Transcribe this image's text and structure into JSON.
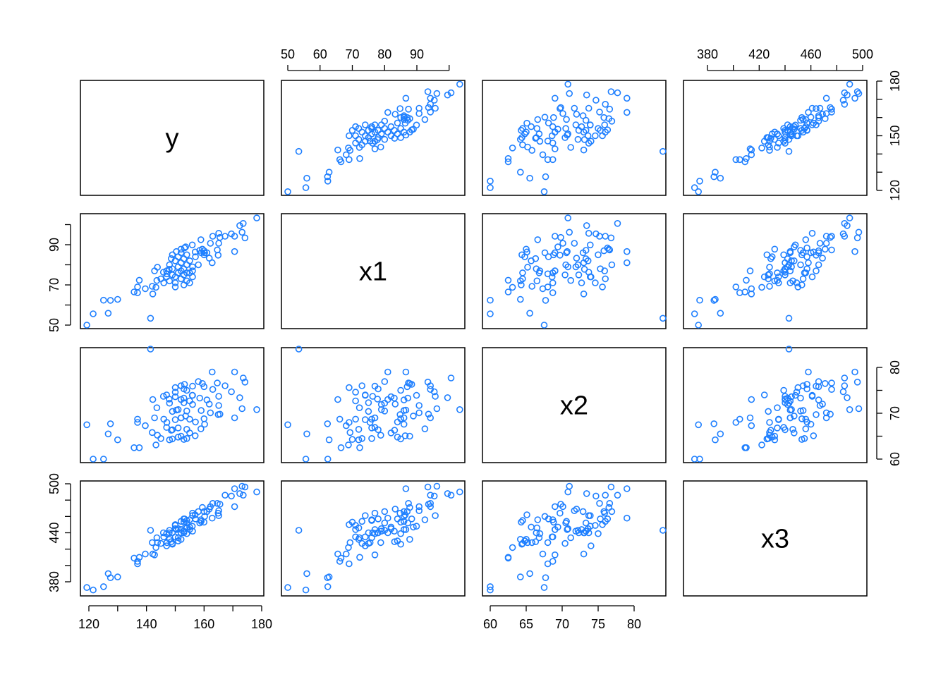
{
  "chart_data": {
    "type": "scatter",
    "subtype": "scatterplot-matrix",
    "variables": [
      "y",
      "x1",
      "x2",
      "x3"
    ],
    "point_color": "#1E7FFF",
    "grid": false,
    "axes": {
      "y": {
        "range": [
          119,
          179
        ],
        "ticks": [
          120,
          130,
          140,
          150,
          160,
          170,
          180
        ],
        "bottom_labels": [
          "120",
          "140",
          "160",
          "180"
        ],
        "right_labels": [
          "120",
          "150",
          "180"
        ]
      },
      "x1": {
        "range": [
          50,
          104
        ],
        "ticks": [
          50,
          60,
          70,
          80,
          90,
          100
        ],
        "top_labels": [
          "50",
          "60",
          "70",
          "80",
          "90"
        ],
        "left_labels": [
          "50",
          "70",
          "90"
        ]
      },
      "x2": {
        "range": [
          59,
          84
        ],
        "ticks": [
          60,
          65,
          70,
          75,
          80
        ],
        "bottom_labels": [
          "60",
          "65",
          "70",
          "75",
          "80"
        ],
        "right_labels": [
          "60",
          "70",
          "80"
        ]
      },
      "x3": {
        "range": [
          372,
          500
        ],
        "ticks": [
          380,
          400,
          420,
          440,
          460,
          480,
          500
        ],
        "top_labels": [
          "380",
          "420",
          "460",
          "500"
        ],
        "left_labels": [
          "380",
          "440",
          "500"
        ]
      }
    },
    "data": {
      "y": [
        119.3,
        121.5,
        126.7,
        125.1,
        127.5,
        130,
        141.4,
        135.7,
        136.9,
        136.9,
        137.5,
        139.6,
        142.2,
        142,
        143.3,
        143.6,
        142.8,
        143.8,
        145.9,
        147.1,
        147.9,
        148.6,
        150.4,
        152,
        153.2,
        153.6,
        155.9,
        156.9,
        158.5,
        159.4,
        160.2,
        161.8,
        162.8,
        162.2,
        158.9,
        163,
        165.1,
        165.5,
        167.3,
        165.1,
        164.6,
        164.9,
        169.5,
        170.6,
        170.6,
        172.4,
        173.6,
        173.2,
        174.2,
        178.3,
        145,
        146,
        147,
        147,
        148,
        148,
        149,
        149,
        150,
        150,
        150,
        151,
        151,
        151,
        152,
        152,
        152,
        153,
        153,
        153,
        154,
        154,
        154,
        155,
        155,
        156,
        156,
        157,
        158,
        159,
        160,
        160,
        161,
        149,
        150,
        152,
        153,
        154,
        155,
        156
      ],
      "x1": [
        50,
        55.6,
        55.9,
        62.4,
        62.3,
        62.8,
        53.4,
        66.5,
        66.1,
        69,
        72.3,
        68.1,
        65.5,
        69.3,
        68.8,
        72.2,
        77,
        78.8,
        76.3,
        75.5,
        77.8,
        83.1,
        86.6,
        87.8,
        88.4,
        88.9,
        89.9,
        86.4,
        87.2,
        87.8,
        86,
        83.3,
        81,
        90.7,
        92.5,
        94.2,
        95.7,
        93.6,
        94.2,
        90.7,
        87.4,
        84.8,
        95.4,
        94.2,
        86.6,
        99.5,
        100.6,
        96.2,
        93.4,
        103.3,
        73,
        71,
        74,
        77,
        72,
        80,
        75,
        78,
        71,
        74,
        82,
        76,
        79,
        84,
        73,
        77,
        81,
        70,
        75,
        78,
        72,
        80,
        85,
        76,
        82,
        74,
        79,
        84,
        80,
        86,
        87,
        85,
        86,
        85,
        69,
        86,
        83,
        76,
        71,
        77
      ],
      "x2": [
        67.5,
        60,
        65.5,
        60,
        67.7,
        64.2,
        84,
        62.5,
        68.7,
        68,
        62.5,
        67.3,
        73,
        65.8,
        63.1,
        71.2,
        69,
        65.2,
        73.7,
        68,
        73.1,
        66.3,
        70.7,
        65,
        76.3,
        69.4,
        73.9,
        65.1,
        73.3,
        76.5,
        67.6,
        72,
        79,
        70.1,
        66.6,
        75.2,
        73.7,
        69.8,
        76,
        71.7,
        76.6,
        69.7,
        74.7,
        69,
        79,
        73.4,
        77.7,
        71,
        76.8,
        70.8,
        64.5,
        68.7,
        74,
        66.9,
        64.2,
        72.2,
        70.4,
        66.4,
        74.6,
        68.6,
        73.6,
        66.8,
        70.8,
        64.8,
        76,
        69,
        73,
        64.3,
        72.3,
        75.3,
        66.5,
        70.5,
        75,
        68.7,
        65.7,
        73.9,
        71.9,
        68.1,
        76.9,
        70.6,
        75.8,
        68.8,
        72.9,
        64.4,
        75.6,
        69,
        73.3,
        64.5,
        72.7,
        75.9
      ],
      "x3": [
        373,
        370,
        390,
        374,
        385,
        386,
        443,
        409,
        405,
        402,
        410,
        414,
        414,
        428,
        422,
        434,
        413,
        428,
        440,
        428,
        440,
        429,
        444,
        432,
        457,
        447,
        448,
        462,
        452,
        471,
        460,
        469,
        458,
        472,
        456,
        476,
        461,
        475,
        486,
        467,
        476,
        464,
        485,
        472,
        494,
        488,
        486,
        497,
        496,
        490,
        427,
        435,
        424,
        439,
        432,
        443,
        427,
        440,
        449,
        435,
        445,
        434,
        445,
        430,
        454,
        444,
        440,
        453,
        440,
        457,
        446,
        452,
        439,
        456,
        447,
        461,
        442,
        457,
        466,
        454,
        466,
        453,
        466,
        426,
        450,
        444,
        442,
        455,
        444,
        464
      ]
    }
  }
}
